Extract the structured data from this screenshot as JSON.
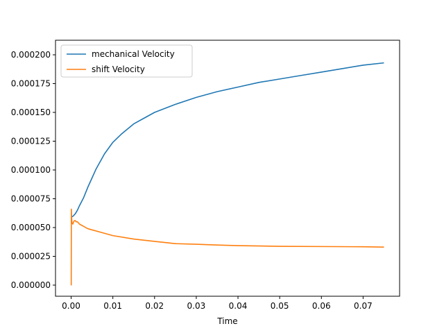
{
  "chart_data": {
    "type": "line",
    "title": "",
    "xlabel": "Time",
    "ylabel": "",
    "xlim": [
      -0.00375,
      0.07875
    ],
    "ylim": [
      -9.65e-06,
      0.00021265
    ],
    "x_ticks": [
      0.0,
      0.01,
      0.02,
      0.03,
      0.04,
      0.05,
      0.06,
      0.07
    ],
    "x_tick_labels": [
      "0.00",
      "0.01",
      "0.02",
      "0.03",
      "0.04",
      "0.05",
      "0.06",
      "0.07"
    ],
    "y_ticks": [
      0.0,
      2.5e-05,
      5e-05,
      7.5e-05,
      0.0001,
      0.000125,
      0.00015,
      0.000175,
      0.0002
    ],
    "y_tick_labels": [
      "0.000000",
      "0.000025",
      "0.000050",
      "0.000075",
      "0.000100",
      "0.000125",
      "0.000150",
      "0.000175",
      "0.000200"
    ],
    "grid": false,
    "legend_position": "upper-left",
    "series": [
      {
        "name": "mechanical Velocity",
        "color": "#1f77b4",
        "x": [
          0.0,
          0.0005,
          0.001,
          0.0015,
          0.002,
          0.003,
          0.004,
          0.005,
          0.006,
          0.008,
          0.01,
          0.012,
          0.015,
          0.018,
          0.02,
          0.025,
          0.03,
          0.035,
          0.04,
          0.045,
          0.05,
          0.055,
          0.06,
          0.065,
          0.07,
          0.075
        ],
        "y": [
          5.9e-05,
          6e-05,
          6.2e-05,
          6.5e-05,
          6.9e-05,
          7.6e-05,
          8.5e-05,
          9.3e-05,
          0.000101,
          0.000114,
          0.000124,
          0.000131,
          0.00014,
          0.000146,
          0.00015,
          0.000157,
          0.000163,
          0.000168,
          0.000172,
          0.000176,
          0.000179,
          0.000182,
          0.000185,
          0.000188,
          0.000191,
          0.000193
        ]
      },
      {
        "name": "shift Velocity",
        "color": "#ff7f0e",
        "x": [
          0.0,
          2e-05,
          5e-05,
          0.0001,
          0.0002,
          0.0004,
          0.0006,
          0.0008,
          0.001,
          0.0012,
          0.0015,
          0.002,
          0.003,
          0.004,
          0.005,
          0.007,
          0.01,
          0.015,
          0.02,
          0.025,
          0.03,
          0.035,
          0.04,
          0.05,
          0.06,
          0.07,
          0.075
        ],
        "y": [
          0.0,
          0.0,
          6.6e-05,
          6e-05,
          5.4e-05,
          5.3e-05,
          5.5e-05,
          5.6e-05,
          5.6e-05,
          5.5e-05,
          5.5e-05,
          5.3e-05,
          5.1e-05,
          4.9e-05,
          4.8e-05,
          4.6e-05,
          4.3e-05,
          4e-05,
          3.8e-05,
          3.6e-05,
          3.55e-05,
          3.48e-05,
          3.43e-05,
          3.37e-05,
          3.35e-05,
          3.33e-05,
          3.3e-05
        ]
      }
    ]
  }
}
